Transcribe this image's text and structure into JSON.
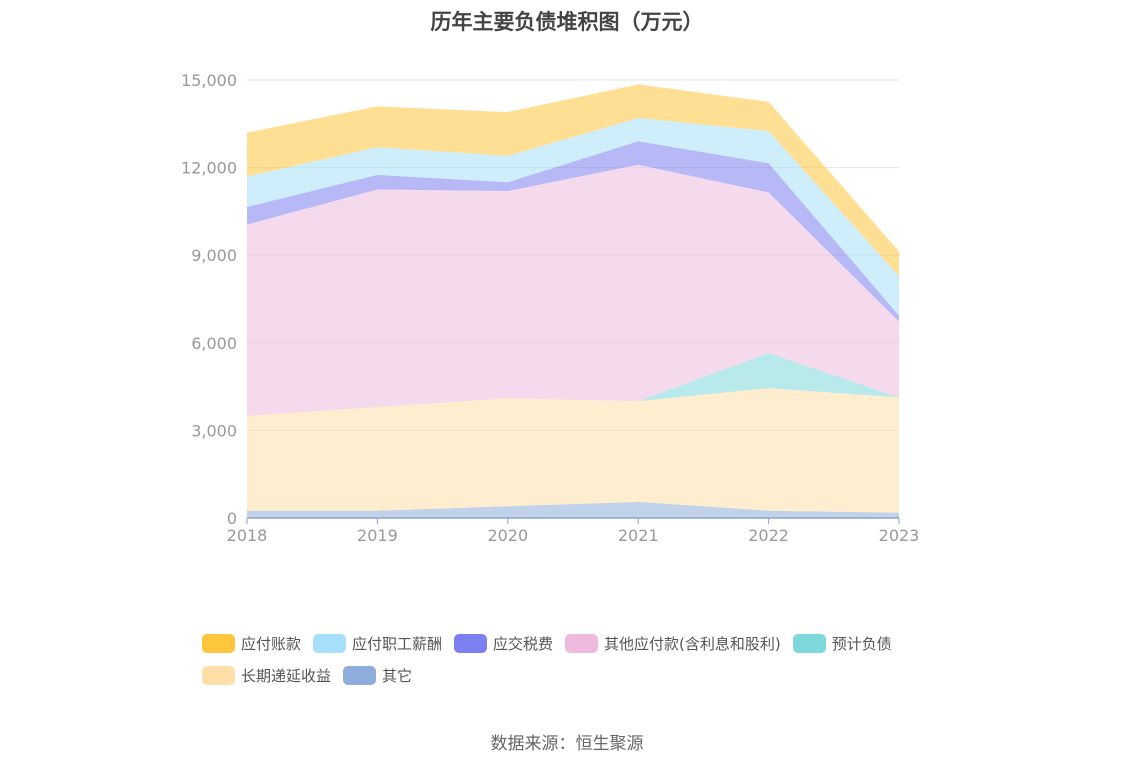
{
  "chart_data": {
    "type": "area",
    "title": "历年主要负债堆积图（万元）",
    "categories": [
      "2018",
      "2019",
      "2020",
      "2021",
      "2022",
      "2023"
    ],
    "y_ticks": [
      "0",
      "3,000",
      "6,000",
      "9,000",
      "12,000",
      "15,000"
    ],
    "ylim": [
      0,
      15000
    ],
    "grid": true,
    "legend_position": "bottom",
    "stack_order_bottom_to_top": [
      "其它",
      "长期递延收益",
      "预计负债",
      "其他应付款(含利息和股利)",
      "应交税费",
      "应付职工薪酬",
      "应付账款"
    ],
    "series": [
      {
        "name": "应付账款",
        "color": "#FFC53D",
        "values": [
          1500,
          1400,
          1500,
          1150,
          1000,
          850
        ]
      },
      {
        "name": "应付职工薪酬",
        "color": "#A6E0FA",
        "values": [
          1050,
          950,
          900,
          800,
          1100,
          1350
        ]
      },
      {
        "name": "应交税费",
        "color": "#7B7FF0",
        "values": [
          600,
          500,
          300,
          800,
          1000,
          200
        ]
      },
      {
        "name": "其他应付款(含利息和股利)",
        "color": "#EDB9DC",
        "values": [
          6550,
          7450,
          7100,
          8100,
          5500,
          2600
        ]
      },
      {
        "name": "预计负债",
        "color": "#7ED7DB",
        "values": [
          0,
          0,
          0,
          0,
          1200,
          0
        ]
      },
      {
        "name": "长期递延收益",
        "color": "#FFDFA7",
        "values": [
          3250,
          3550,
          3700,
          3450,
          4200,
          3950
        ]
      },
      {
        "name": "其它",
        "color": "#8EADDB",
        "values": [
          250,
          250,
          400,
          550,
          250,
          180
        ]
      }
    ]
  },
  "source": "数据来源：恒生聚源"
}
